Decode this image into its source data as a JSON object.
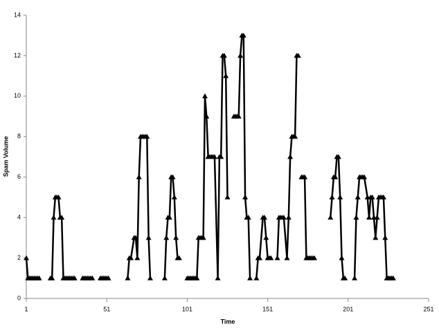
{
  "chart_data": {
    "type": "line",
    "x_label": "Time",
    "y_label": "Spam Volume",
    "xlim": [
      1,
      251
    ],
    "xticks": [
      1,
      51,
      101,
      151,
      201,
      251
    ],
    "ylim": [
      0,
      14
    ],
    "yticks": [
      0,
      2,
      4,
      6,
      8,
      10,
      12,
      14
    ],
    "grid": false,
    "series": [
      {
        "name": "Spam Volume",
        "color": "#000000",
        "marker": "triangle",
        "x": [
          1,
          2,
          3,
          4,
          5,
          6,
          7,
          8,
          9,
          12,
          16,
          17,
          18,
          19,
          20,
          21,
          22,
          23,
          24,
          25,
          26,
          27,
          28,
          29,
          30,
          31,
          33,
          36,
          37,
          38,
          39,
          40,
          41,
          42,
          44,
          47,
          48,
          49,
          50,
          51,
          52,
          58,
          64,
          65,
          66,
          68,
          69,
          70,
          71,
          72,
          73,
          74,
          75,
          76,
          77,
          78,
          82,
          87,
          88,
          89,
          90,
          91,
          92,
          93,
          94,
          95,
          96,
          98,
          101,
          102,
          103,
          104,
          105,
          106,
          107,
          108,
          109,
          110,
          111,
          112,
          113,
          114,
          115,
          116,
          117,
          118,
          120,
          121,
          122,
          123,
          124,
          125,
          126,
          128,
          130,
          131,
          132,
          133,
          134,
          135,
          136,
          137,
          138,
          139,
          140,
          142,
          144,
          145,
          146,
          148,
          149,
          150,
          151,
          152,
          153,
          155,
          157,
          158,
          159,
          160,
          161,
          163,
          164,
          165,
          166,
          167,
          168,
          169,
          170,
          171,
          172,
          173,
          174,
          175,
          176,
          177,
          178,
          179,
          180,
          185,
          190,
          191,
          192,
          193,
          194,
          195,
          196,
          197,
          198,
          199,
          202,
          205,
          206,
          207,
          208,
          209,
          210,
          211,
          213,
          214,
          215,
          216,
          217,
          218,
          219,
          220,
          221,
          222,
          223,
          224,
          225,
          226,
          227,
          228,
          229
        ],
        "values": [
          2,
          1,
          1,
          1,
          1,
          1,
          1,
          1,
          1,
          null,
          1,
          1,
          4,
          5,
          5,
          5,
          4,
          4,
          1,
          1,
          1,
          1,
          1,
          1,
          1,
          1,
          null,
          1,
          1,
          1,
          1,
          1,
          1,
          1,
          null,
          1,
          1,
          1,
          1,
          1,
          1,
          null,
          1,
          2,
          2,
          3,
          3,
          2,
          6,
          8,
          8,
          8,
          8,
          8,
          3,
          1,
          null,
          1,
          3,
          4,
          4,
          6,
          6,
          5,
          3,
          2,
          2,
          null,
          1,
          1,
          1,
          1,
          1,
          1,
          1,
          3,
          3,
          3,
          3,
          10,
          9,
          7,
          7,
          7,
          7,
          7,
          1,
          7,
          7,
          12,
          12,
          11,
          5,
          null,
          9,
          9,
          9,
          9,
          12,
          13,
          13,
          5,
          4,
          4,
          1,
          null,
          1,
          2,
          2,
          4,
          4,
          3,
          2,
          2,
          2,
          null,
          2,
          4,
          4,
          4,
          4,
          2,
          4,
          7,
          8,
          8,
          8,
          12,
          12,
          null,
          6,
          6,
          6,
          2,
          2,
          2,
          2,
          2,
          2,
          null,
          4,
          5,
          6,
          6,
          7,
          7,
          5,
          2,
          1,
          1,
          null,
          1,
          4,
          5,
          6,
          6,
          6,
          6,
          5,
          4,
          5,
          5,
          4,
          3,
          4,
          5,
          5,
          5,
          5,
          3,
          1,
          1,
          1,
          1,
          1
        ]
      }
    ]
  }
}
